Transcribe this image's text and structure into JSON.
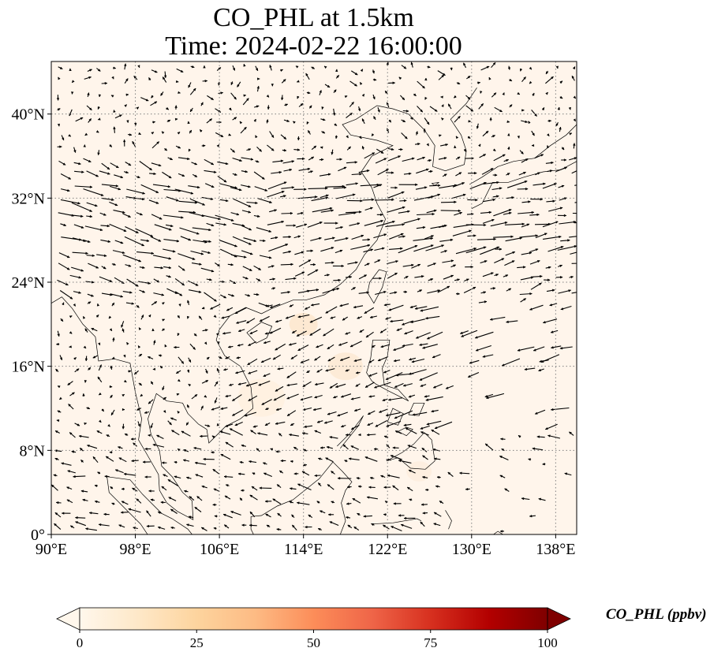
{
  "title": {
    "line1": "CO_PHL at 1.5km",
    "line2": "Time: 2024-02-22 16:00:00"
  },
  "map": {
    "projection": "PlateCarree",
    "lon_range": [
      90,
      140
    ],
    "lat_range": [
      0,
      45
    ],
    "gridlines": "dotted",
    "x_ticks": [
      {
        "value": 90,
        "label": "90°E"
      },
      {
        "value": 98,
        "label": "98°E"
      },
      {
        "value": 106,
        "label": "106°E"
      },
      {
        "value": 114,
        "label": "114°E"
      },
      {
        "value": 122,
        "label": "122°E"
      },
      {
        "value": 130,
        "label": "130°E"
      },
      {
        "value": 138,
        "label": "138°E"
      }
    ],
    "y_ticks": [
      {
        "value": 0,
        "label": "0°"
      },
      {
        "value": 8,
        "label": "8°N"
      },
      {
        "value": 16,
        "label": "16°N"
      },
      {
        "value": 24,
        "label": "24°N"
      },
      {
        "value": 32,
        "label": "32°N"
      },
      {
        "value": 40,
        "label": "40°N"
      }
    ],
    "background_color": "#fff5eb",
    "vector_color": "#000000",
    "coastline_color": "#000000"
  },
  "colorbar": {
    "label": "CO_PHL (ppbv)",
    "min": 0,
    "max": 100,
    "extend": "both",
    "colormap": "OrRd",
    "colors": [
      "#fff7ec",
      "#fee8c8",
      "#fdd49e",
      "#fdbb84",
      "#fc8d59",
      "#ef6548",
      "#d7301f",
      "#b30000",
      "#7f0000"
    ],
    "ticks": [
      {
        "value": 0,
        "label": "0"
      },
      {
        "value": 25,
        "label": "25"
      },
      {
        "value": 50,
        "label": "50"
      },
      {
        "value": 75,
        "label": "75"
      },
      {
        "value": 100,
        "label": "100"
      }
    ]
  }
}
